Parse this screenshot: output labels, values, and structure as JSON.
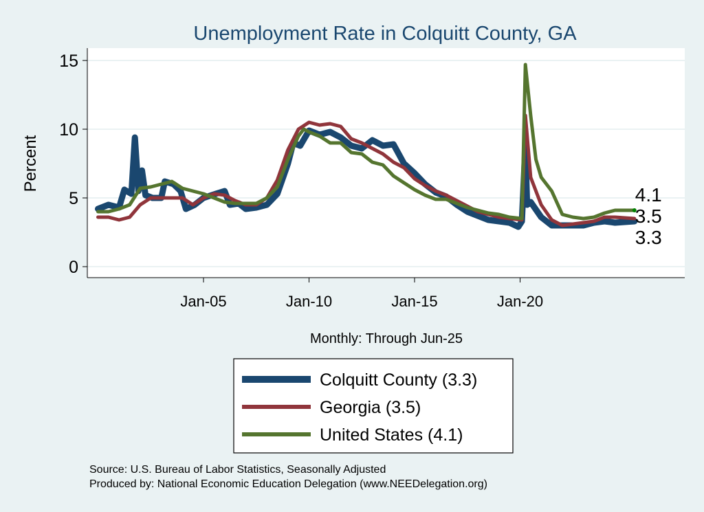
{
  "chart_data": {
    "type": "line",
    "title": "Unemployment Rate in Colquitt  County, GA",
    "ylabel": "Percent",
    "xlabel": "Monthly: Through Jun-25",
    "ylim": [
      0,
      15
    ],
    "yticks": [
      0,
      5,
      10,
      15
    ],
    "xticks": [
      {
        "label": "Jan-05",
        "date": "2005-01"
      },
      {
        "label": "Jan-10",
        "date": "2010-01"
      },
      {
        "label": "Jan-15",
        "date": "2015-01"
      },
      {
        "label": "Jan-20",
        "date": "2020-01"
      }
    ],
    "grid": true,
    "legend_position": "bottom",
    "series": [
      {
        "name": "Colquitt  County (3.3)",
        "color": "#1a476f",
        "end_label": "3.3",
        "points": [
          [
            "2000-01",
            4.2
          ],
          [
            "2000-07",
            4.5
          ],
          [
            "2001-01",
            4.3
          ],
          [
            "2001-04",
            5.6
          ],
          [
            "2001-08",
            5.3
          ],
          [
            "2001-10",
            9.4
          ],
          [
            "2001-12",
            5.5
          ],
          [
            "2002-02",
            7.0
          ],
          [
            "2002-04",
            5.2
          ],
          [
            "2002-08",
            5.0
          ],
          [
            "2003-01",
            5.0
          ],
          [
            "2003-03",
            6.2
          ],
          [
            "2003-08",
            6.0
          ],
          [
            "2003-12",
            5.5
          ],
          [
            "2004-03",
            4.2
          ],
          [
            "2004-08",
            4.5
          ],
          [
            "2005-01",
            5.0
          ],
          [
            "2005-08",
            5.3
          ],
          [
            "2006-01",
            5.5
          ],
          [
            "2006-04",
            4.5
          ],
          [
            "2006-09",
            4.6
          ],
          [
            "2007-01",
            4.2
          ],
          [
            "2007-07",
            4.3
          ],
          [
            "2008-01",
            4.5
          ],
          [
            "2008-07",
            5.3
          ],
          [
            "2009-01",
            7.5
          ],
          [
            "2009-04",
            9.0
          ],
          [
            "2009-08",
            8.8
          ],
          [
            "2010-01",
            9.9
          ],
          [
            "2010-07",
            9.6
          ],
          [
            "2011-01",
            9.8
          ],
          [
            "2011-07",
            9.4
          ],
          [
            "2012-01",
            8.8
          ],
          [
            "2012-07",
            8.6
          ],
          [
            "2013-01",
            9.2
          ],
          [
            "2013-07",
            8.8
          ],
          [
            "2014-01",
            8.9
          ],
          [
            "2014-07",
            7.5
          ],
          [
            "2015-01",
            6.8
          ],
          [
            "2015-07",
            6.0
          ],
          [
            "2016-01",
            5.4
          ],
          [
            "2016-07",
            5.1
          ],
          [
            "2017-01",
            4.5
          ],
          [
            "2017-07",
            4.0
          ],
          [
            "2018-01",
            3.7
          ],
          [
            "2018-07",
            3.4
          ],
          [
            "2019-01",
            3.3
          ],
          [
            "2019-07",
            3.2
          ],
          [
            "2019-12",
            2.9
          ],
          [
            "2020-02",
            3.3
          ],
          [
            "2020-04",
            8.8
          ],
          [
            "2020-05",
            4.5
          ],
          [
            "2020-07",
            4.7
          ],
          [
            "2021-01",
            3.6
          ],
          [
            "2021-07",
            3.0
          ],
          [
            "2022-01",
            3.0
          ],
          [
            "2022-07",
            3.0
          ],
          [
            "2023-01",
            3.0
          ],
          [
            "2023-07",
            3.2
          ],
          [
            "2024-01",
            3.3
          ],
          [
            "2024-07",
            3.2
          ],
          [
            "2025-06",
            3.3
          ]
        ]
      },
      {
        "name": "Georgia (3.5)",
        "color": "#90353b",
        "end_label": "3.5",
        "points": [
          [
            "2000-01",
            3.6
          ],
          [
            "2000-07",
            3.6
          ],
          [
            "2001-01",
            3.4
          ],
          [
            "2001-07",
            3.6
          ],
          [
            "2002-01",
            4.5
          ],
          [
            "2002-07",
            5.0
          ],
          [
            "2003-01",
            5.0
          ],
          [
            "2004-01",
            5.0
          ],
          [
            "2004-07",
            4.5
          ],
          [
            "2005-01",
            5.0
          ],
          [
            "2005-07",
            5.3
          ],
          [
            "2006-01",
            5.2
          ],
          [
            "2006-07",
            4.8
          ],
          [
            "2007-01",
            4.5
          ],
          [
            "2007-07",
            4.5
          ],
          [
            "2008-01",
            5.0
          ],
          [
            "2008-07",
            6.3
          ],
          [
            "2009-01",
            8.5
          ],
          [
            "2009-07",
            10.0
          ],
          [
            "2010-01",
            10.5
          ],
          [
            "2010-07",
            10.3
          ],
          [
            "2011-01",
            10.4
          ],
          [
            "2011-07",
            10.2
          ],
          [
            "2012-01",
            9.3
          ],
          [
            "2012-07",
            9.0
          ],
          [
            "2013-01",
            8.6
          ],
          [
            "2013-07",
            8.2
          ],
          [
            "2014-01",
            7.6
          ],
          [
            "2014-07",
            7.2
          ],
          [
            "2015-01",
            6.4
          ],
          [
            "2015-07",
            5.9
          ],
          [
            "2016-01",
            5.5
          ],
          [
            "2016-07",
            5.2
          ],
          [
            "2017-01",
            4.8
          ],
          [
            "2017-07",
            4.4
          ],
          [
            "2018-01",
            4.0
          ],
          [
            "2018-07",
            3.8
          ],
          [
            "2019-01",
            3.6
          ],
          [
            "2019-07",
            3.5
          ],
          [
            "2020-02",
            3.4
          ],
          [
            "2020-04",
            11.0
          ],
          [
            "2020-07",
            6.5
          ],
          [
            "2021-01",
            4.5
          ],
          [
            "2021-07",
            3.4
          ],
          [
            "2022-01",
            3.0
          ],
          [
            "2022-07",
            3.1
          ],
          [
            "2023-01",
            3.2
          ],
          [
            "2023-07",
            3.3
          ],
          [
            "2024-01",
            3.6
          ],
          [
            "2024-07",
            3.6
          ],
          [
            "2025-06",
            3.5
          ]
        ]
      },
      {
        "name": "United States (4.1)",
        "color": "#55752f",
        "end_label": "4.1",
        "points": [
          [
            "2000-01",
            4.0
          ],
          [
            "2000-07",
            4.0
          ],
          [
            "2001-01",
            4.2
          ],
          [
            "2001-07",
            4.5
          ],
          [
            "2002-01",
            5.7
          ],
          [
            "2002-07",
            5.8
          ],
          [
            "2003-01",
            6.0
          ],
          [
            "2003-07",
            6.2
          ],
          [
            "2004-01",
            5.7
          ],
          [
            "2004-07",
            5.5
          ],
          [
            "2005-01",
            5.3
          ],
          [
            "2005-07",
            5.0
          ],
          [
            "2006-01",
            4.7
          ],
          [
            "2006-07",
            4.6
          ],
          [
            "2007-01",
            4.6
          ],
          [
            "2007-07",
            4.6
          ],
          [
            "2008-01",
            5.0
          ],
          [
            "2008-07",
            5.8
          ],
          [
            "2009-01",
            7.8
          ],
          [
            "2009-07",
            9.5
          ],
          [
            "2009-10",
            10.0
          ],
          [
            "2010-01",
            9.8
          ],
          [
            "2010-07",
            9.5
          ],
          [
            "2011-01",
            9.0
          ],
          [
            "2011-07",
            9.0
          ],
          [
            "2012-01",
            8.3
          ],
          [
            "2012-07",
            8.2
          ],
          [
            "2013-01",
            7.6
          ],
          [
            "2013-07",
            7.4
          ],
          [
            "2014-01",
            6.6
          ],
          [
            "2014-07",
            6.1
          ],
          [
            "2015-01",
            5.6
          ],
          [
            "2015-07",
            5.2
          ],
          [
            "2016-01",
            4.9
          ],
          [
            "2016-07",
            4.9
          ],
          [
            "2017-01",
            4.6
          ],
          [
            "2017-07",
            4.3
          ],
          [
            "2018-01",
            4.1
          ],
          [
            "2018-07",
            3.9
          ],
          [
            "2019-01",
            3.8
          ],
          [
            "2019-07",
            3.6
          ],
          [
            "2020-02",
            3.5
          ],
          [
            "2020-04",
            14.7
          ],
          [
            "2020-07",
            11.0
          ],
          [
            "2020-10",
            7.8
          ],
          [
            "2021-01",
            6.5
          ],
          [
            "2021-07",
            5.5
          ],
          [
            "2022-01",
            3.8
          ],
          [
            "2022-07",
            3.6
          ],
          [
            "2023-01",
            3.5
          ],
          [
            "2023-07",
            3.6
          ],
          [
            "2024-01",
            3.9
          ],
          [
            "2024-07",
            4.1
          ],
          [
            "2025-06",
            4.1
          ]
        ]
      }
    ],
    "notes": [
      "Source: U.S. Bureau of Labor Statistics, Seasonally Adjusted",
      "Produced by: National Economic Education Delegation (www.NEEDelegation.org)"
    ]
  }
}
